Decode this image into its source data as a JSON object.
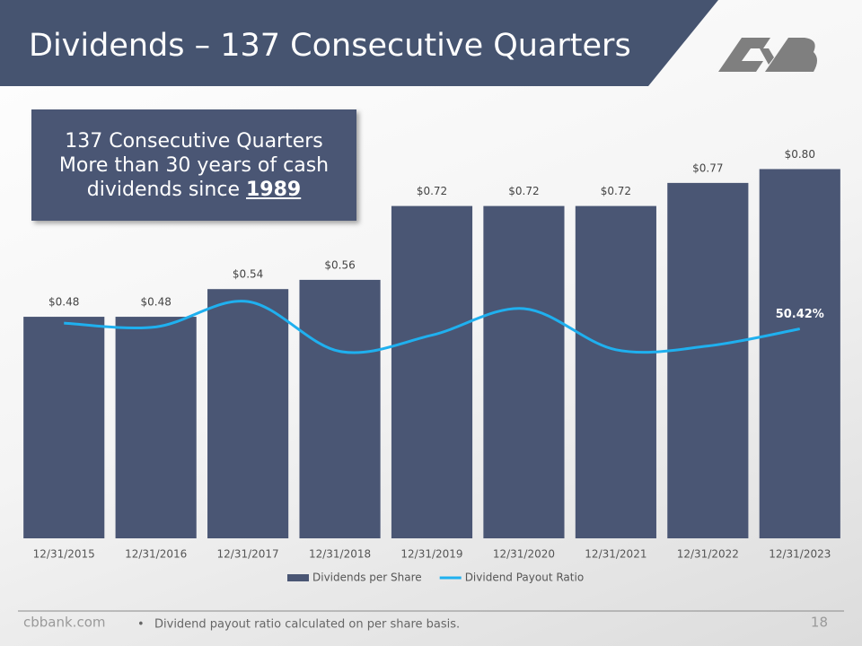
{
  "header": {
    "title": "Dividends – 137 Consecutive Quarters",
    "callout": {
      "line1": "137 Consecutive Quarters",
      "line2": "More than 30 years of cash",
      "line3": "dividends since",
      "highlight": "1989"
    }
  },
  "chart_data": {
    "type": "bar",
    "categories": [
      "12/31/2015",
      "12/31/2016",
      "12/31/2017",
      "12/31/2018",
      "12/31/2019",
      "12/31/2020",
      "12/31/2021",
      "12/31/2022",
      "12/31/2023"
    ],
    "series": [
      {
        "name": "Dividends per Share",
        "color": "#4a5674",
        "values": [
          0.48,
          0.48,
          0.54,
          0.56,
          0.72,
          0.72,
          0.72,
          0.77,
          0.8
        ],
        "value_labels": [
          "$0.48",
          "$0.48",
          "$0.54",
          "$0.56",
          "$0.72",
          "$0.72",
          "$0.72",
          "$0.77",
          "$0.80"
        ]
      },
      {
        "name": "Dividend Payout Ratio",
        "color": "#1fb0ef",
        "type": "line",
        "axis": "y2",
        "values": [
          51.8,
          50.9,
          57.0,
          45.0,
          48.9,
          55.3,
          45.4,
          46.3,
          50.42
        ],
        "value_labels": [
          null,
          null,
          null,
          null,
          null,
          null,
          null,
          null,
          "50.42%"
        ]
      }
    ],
    "ylim": [
      0,
      0.9
    ],
    "y2lim": [
      0,
      100
    ],
    "legend": "bottom"
  },
  "footer": {
    "site": "cbbank.com",
    "note": "Dividend payout ratio calculated on per share basis.",
    "page": "18"
  }
}
